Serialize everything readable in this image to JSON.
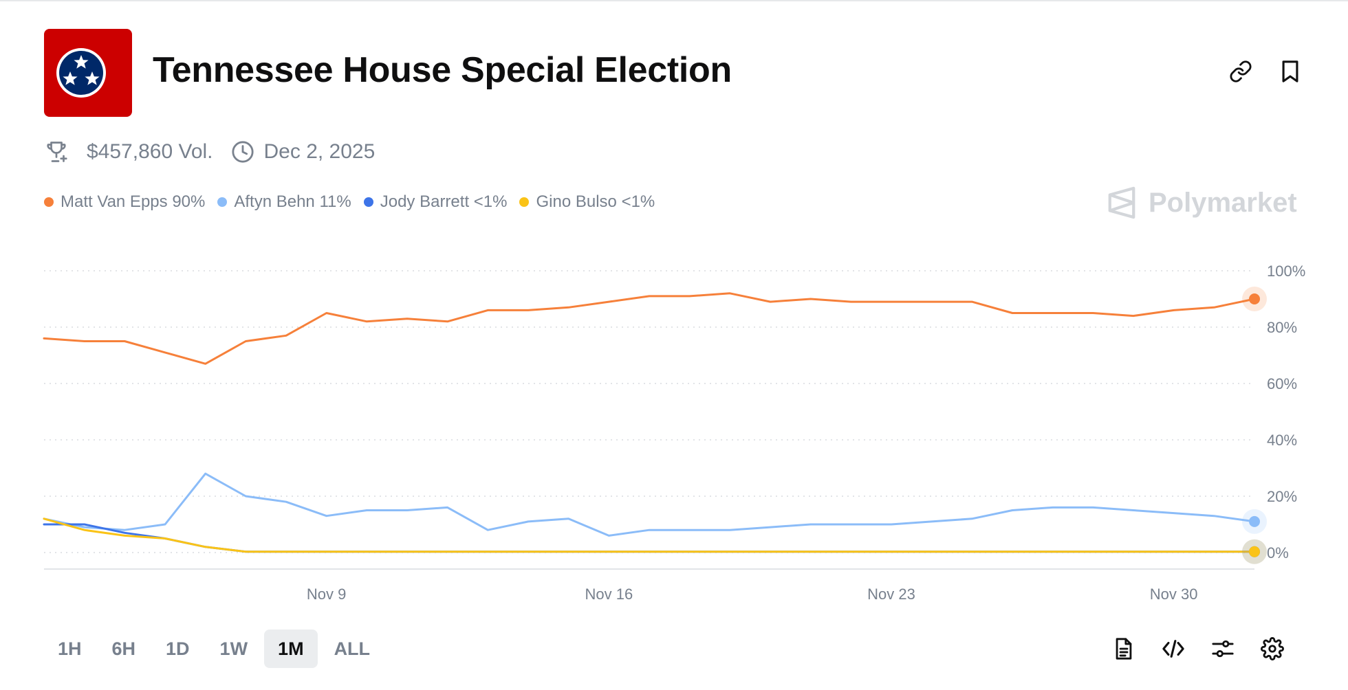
{
  "header": {
    "title": "Tennessee House Special Election",
    "flag_color": "#cc0000",
    "flag_circle_color": "#002868",
    "link_icon": "link-icon",
    "bookmark_icon": "bookmark-icon"
  },
  "meta": {
    "volume": "$457,860 Vol.",
    "date": "Dec 2, 2025",
    "volume_icon": "trophy-icon",
    "date_icon": "clock-icon"
  },
  "legend": [
    {
      "name": "Matt Van Epps",
      "value": "90%",
      "color": "#f6803a"
    },
    {
      "name": "Aftyn Behn",
      "value": "11%",
      "color": "#8bbcf8"
    },
    {
      "name": "Jody Barrett",
      "value": "<1%",
      "color": "#3d74e8"
    },
    {
      "name": "Gino Bulso",
      "value": "<1%",
      "color": "#fac317"
    }
  ],
  "watermark": "Polymarket",
  "chart_data": {
    "type": "line",
    "x": [
      "2025-11-02",
      "2025-11-03",
      "2025-11-04",
      "2025-11-05",
      "2025-11-06",
      "2025-11-07",
      "2025-11-08",
      "2025-11-09",
      "2025-11-10",
      "2025-11-11",
      "2025-11-12",
      "2025-11-13",
      "2025-11-14",
      "2025-11-15",
      "2025-11-16",
      "2025-11-17",
      "2025-11-18",
      "2025-11-19",
      "2025-11-20",
      "2025-11-21",
      "2025-11-22",
      "2025-11-23",
      "2025-11-24",
      "2025-11-25",
      "2025-11-26",
      "2025-11-27",
      "2025-11-28",
      "2025-11-29",
      "2025-11-30",
      "2025-12-01",
      "2025-12-02"
    ],
    "x_ticks": [
      "Nov 9",
      "Nov 16",
      "Nov 23",
      "Nov 30"
    ],
    "x_tick_dates": [
      "2025-11-09",
      "2025-11-16",
      "2025-11-23",
      "2025-11-30"
    ],
    "y_ticks": [
      "100%",
      "80%",
      "60%",
      "40%",
      "20%",
      "0%"
    ],
    "ylim": [
      0,
      100
    ],
    "grid": true,
    "y_axis_side": "right",
    "series": [
      {
        "name": "Matt Van Epps",
        "color": "#f6803a",
        "values": [
          76,
          75,
          75,
          71,
          67,
          75,
          77,
          85,
          82,
          83,
          82,
          86,
          86,
          87,
          89,
          91,
          91,
          92,
          89,
          90,
          89,
          89,
          89,
          89,
          85,
          85,
          85,
          84,
          86,
          87,
          90
        ]
      },
      {
        "name": "Aftyn Behn",
        "color": "#8bbcf8",
        "values": [
          12,
          9,
          8,
          10,
          28,
          20,
          18,
          13,
          15,
          15,
          16,
          8,
          11,
          12,
          6,
          8,
          8,
          8,
          9,
          10,
          10,
          10,
          11,
          12,
          15,
          16,
          16,
          15,
          14,
          13,
          11
        ]
      },
      {
        "name": "Jody Barrett",
        "color": "#3d74e8",
        "values": [
          10,
          10,
          7,
          5,
          2,
          0.3,
          0.3,
          0.3,
          0.3,
          0.3,
          0.3,
          0.3,
          0.3,
          0.3,
          0.3,
          0.3,
          0.3,
          0.3,
          0.3,
          0.3,
          0.3,
          0.3,
          0.3,
          0.3,
          0.3,
          0.3,
          0.3,
          0.3,
          0.3,
          0.3,
          0.3
        ]
      },
      {
        "name": "Gino Bulso",
        "color": "#fac317",
        "values": [
          12,
          8,
          6,
          5,
          2,
          0.3,
          0.3,
          0.3,
          0.3,
          0.3,
          0.3,
          0.3,
          0.3,
          0.3,
          0.3,
          0.3,
          0.3,
          0.3,
          0.3,
          0.3,
          0.3,
          0.3,
          0.3,
          0.3,
          0.3,
          0.3,
          0.3,
          0.3,
          0.3,
          0.3,
          0.3
        ]
      }
    ]
  },
  "ranges": [
    {
      "label": "1H",
      "active": false
    },
    {
      "label": "6H",
      "active": false
    },
    {
      "label": "1D",
      "active": false
    },
    {
      "label": "1W",
      "active": false
    },
    {
      "label": "1M",
      "active": true
    },
    {
      "label": "ALL",
      "active": false
    }
  ],
  "tools": [
    "document-icon",
    "code-icon",
    "sliders-icon",
    "gear-icon"
  ]
}
